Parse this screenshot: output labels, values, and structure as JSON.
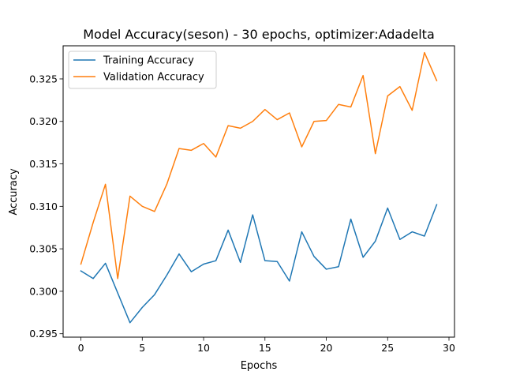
{
  "chart_data": {
    "type": "line",
    "title": "Model Accuracy(seson) - 30 epochs, optimizer:Adadelta",
    "xlabel": "Epochs",
    "ylabel": "Accuracy",
    "xlim": [
      -1.45,
      30.45
    ],
    "ylim": [
      0.2946,
      0.3289
    ],
    "xticks": [
      0,
      5,
      10,
      15,
      20,
      25,
      30
    ],
    "xtick_labels": [
      "0",
      "5",
      "10",
      "15",
      "20",
      "25",
      "30"
    ],
    "yticks": [
      0.295,
      0.3,
      0.305,
      0.31,
      0.315,
      0.32,
      0.325
    ],
    "ytick_labels": [
      "0.295",
      "0.300",
      "0.305",
      "0.310",
      "0.315",
      "0.320",
      "0.325"
    ],
    "grid": false,
    "legend_position": "top-left",
    "x": [
      0,
      1,
      2,
      3,
      4,
      5,
      6,
      7,
      8,
      9,
      10,
      11,
      12,
      13,
      14,
      15,
      16,
      17,
      18,
      19,
      20,
      21,
      22,
      23,
      24,
      25,
      26,
      27,
      28,
      29
    ],
    "series": [
      {
        "name": "Training Accuracy",
        "color": "#1f77b4",
        "values": [
          0.3024,
          0.3015,
          0.3033,
          0.2998,
          0.2963,
          0.2981,
          0.2996,
          0.3019,
          0.3044,
          0.3023,
          0.3032,
          0.3036,
          0.3072,
          0.3034,
          0.309,
          0.3036,
          0.3035,
          0.3012,
          0.307,
          0.3041,
          0.3026,
          0.3029,
          0.3085,
          0.304,
          0.3059,
          0.3098,
          0.3061,
          0.307,
          0.3065,
          0.3102
        ]
      },
      {
        "name": "Validation Accuracy",
        "color": "#ff7f0e",
        "values": [
          0.3032,
          0.3081,
          0.3126,
          0.3015,
          0.3112,
          0.31,
          0.3094,
          0.3126,
          0.3168,
          0.3166,
          0.3174,
          0.3158,
          0.3195,
          0.3192,
          0.32,
          0.3214,
          0.3202,
          0.321,
          0.317,
          0.32,
          0.3201,
          0.322,
          0.3217,
          0.3254,
          0.3162,
          0.323,
          0.3241,
          0.3213,
          0.3281,
          0.3248
        ]
      }
    ]
  }
}
